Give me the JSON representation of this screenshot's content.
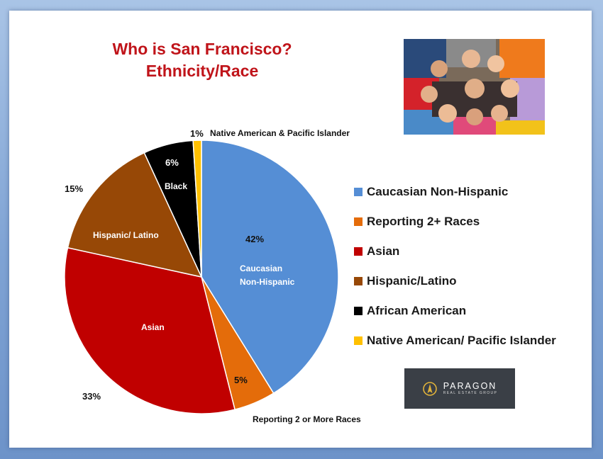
{
  "slide": {
    "title_line1": "Who is San Francisco?",
    "title_line2": "Ethnicity/Race"
  },
  "chart_data": {
    "type": "pie",
    "title": "Who is San Francisco? Ethnicity/Race",
    "slices": [
      {
        "name": "Caucasian Non-Hispanic",
        "value": 42,
        "color": "#558ed5",
        "pct_label": "42%",
        "slice_label": "Caucasian\nNon-Hispanic"
      },
      {
        "name": "Reporting 2+ Races",
        "value": 5,
        "color": "#e46c0a",
        "pct_label": "5%",
        "slice_label": "Reporting 2 or More Races"
      },
      {
        "name": "Asian",
        "value": 33,
        "color": "#c00000",
        "pct_label": "33%",
        "slice_label": "Asian"
      },
      {
        "name": "Hispanic/Latino",
        "value": 15,
        "color": "#974806",
        "pct_label": "15%",
        "slice_label": "Hispanic/ Latino"
      },
      {
        "name": "African American",
        "value": 6,
        "color": "#000000",
        "pct_label": "6%",
        "slice_label": "Black"
      },
      {
        "name": "Native American/ Pacific Islander",
        "value": 1,
        "color": "#ffc000",
        "pct_label": "1%",
        "slice_label": "Native American & Pacific Islander"
      }
    ],
    "legend_position": "right"
  },
  "legend": {
    "items": [
      {
        "label": "Caucasian Non-Hispanic",
        "color": "#558ed5"
      },
      {
        "label": "Reporting 2+ Races",
        "color": "#e46c0a"
      },
      {
        "label": "Asian",
        "color": "#c00000"
      },
      {
        "label": "Hispanic/Latino",
        "color": "#974806"
      },
      {
        "label": "African American",
        "color": "#000000"
      },
      {
        "label": "Native American/ Pacific Islander",
        "color": "#ffc000"
      }
    ]
  },
  "labels": {
    "caucasian_pct": "42%",
    "caucasian_line1": "Caucasian",
    "caucasian_line2": "Non-Hispanic",
    "reporting_pct": "5%",
    "reporting_name": "Reporting 2 or More Races",
    "asian_pct": "33%",
    "asian_name": "Asian",
    "hispanic_pct": "15%",
    "hispanic_name": "Hispanic/ Latino",
    "black_pct": "6%",
    "black_name": "Black",
    "native_pct": "1%",
    "native_name": "Native American & Pacific Islander"
  },
  "logo": {
    "name": "PARAGON",
    "subtitle": "REAL ESTATE GROUP"
  }
}
